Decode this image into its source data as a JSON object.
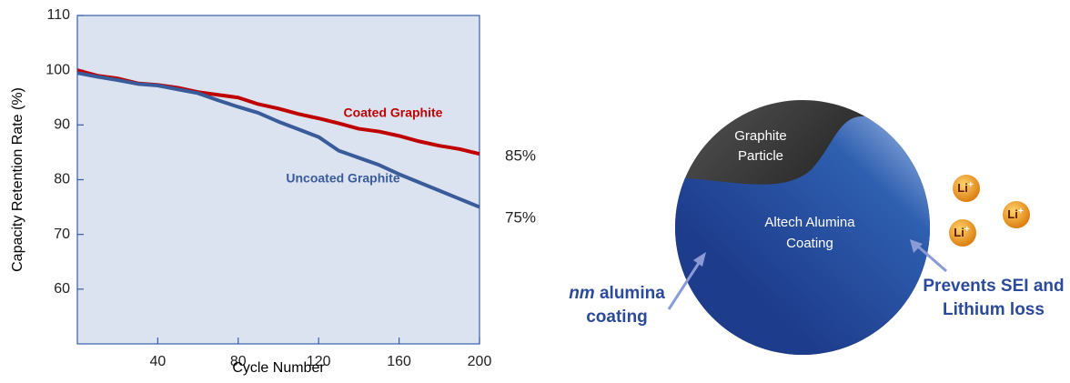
{
  "chart_data": {
    "type": "line",
    "ylabel": "Capacity Retention Rate (%)",
    "xlabel": "Cycle Number",
    "xlim": [
      0,
      200
    ],
    "ylim": [
      50,
      110
    ],
    "xticks": [
      40,
      80,
      120,
      160,
      200
    ],
    "yticks": [
      60,
      70,
      80,
      90,
      100,
      110
    ],
    "x": [
      0,
      10,
      20,
      30,
      40,
      50,
      60,
      70,
      80,
      90,
      100,
      110,
      120,
      130,
      140,
      150,
      160,
      170,
      180,
      190,
      200
    ],
    "series": [
      {
        "name": "Coated Graphite",
        "color": "#c00000",
        "values": [
          100,
          99,
          98.5,
          97.6,
          97.3,
          96.8,
          96,
          95.5,
          95,
          93.8,
          93,
          92,
          91.2,
          90.3,
          89.3,
          88.8,
          88,
          87,
          86.2,
          85.6,
          84.7
        ]
      },
      {
        "name": "Uncoated Graphite",
        "color": "#3a5b9a",
        "values": [
          99.5,
          98.8,
          98.2,
          97.5,
          97.2,
          96.5,
          95.8,
          94.5,
          93.3,
          92.2,
          90.6,
          89.2,
          87.8,
          85.3,
          84,
          82.7,
          81,
          79.5,
          78,
          76.5,
          75
        ]
      }
    ],
    "annotations": [
      "85%",
      "75%"
    ]
  },
  "diagram": {
    "particle_label": [
      "Graphite",
      "Particle"
    ],
    "coating_label": [
      "Altech Alumina",
      "Coating"
    ],
    "left_note": {
      "italic": "nm",
      "rest": " alumina",
      "line2": "coating"
    },
    "right_note": [
      "Prevents SEI and",
      "Lithium loss"
    ],
    "ion": {
      "symbol": "Li",
      "charge": "+"
    }
  }
}
